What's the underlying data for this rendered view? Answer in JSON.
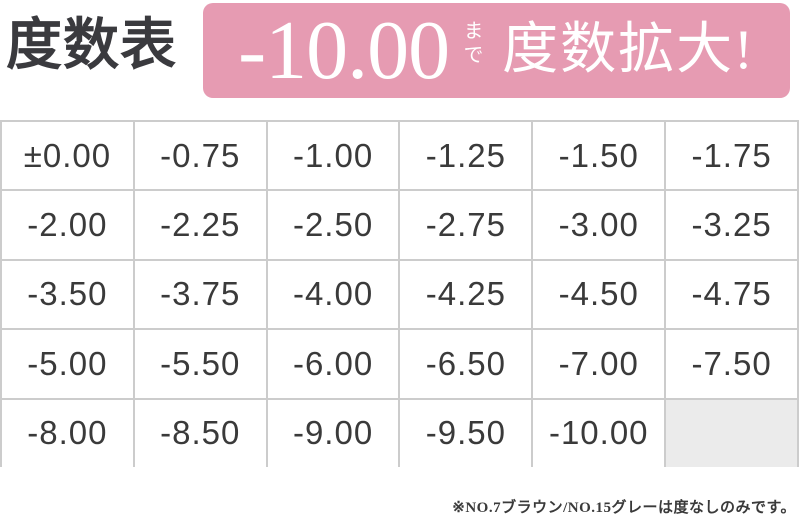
{
  "header": {
    "title": "度数表",
    "banner": {
      "power_value": "-10.00",
      "made_label": "まで",
      "message": "度数拡大!"
    }
  },
  "chart_data": {
    "type": "table",
    "title": "度数表",
    "columns": 6,
    "rows": [
      [
        "±0.00",
        "-0.75",
        "-1.00",
        "-1.25",
        "-1.50",
        "-1.75"
      ],
      [
        "-2.00",
        "-2.25",
        "-2.50",
        "-2.75",
        "-3.00",
        "-3.25"
      ],
      [
        "-3.50",
        "-3.75",
        "-4.00",
        "-4.25",
        "-4.50",
        "-4.75"
      ],
      [
        "-5.00",
        "-5.50",
        "-6.00",
        "-6.50",
        "-7.00",
        "-7.50"
      ],
      [
        "-8.00",
        "-8.50",
        "-9.00",
        "-9.50",
        "-10.00",
        ""
      ]
    ],
    "empty_cells": [
      [
        4,
        5
      ]
    ],
    "power_range_min": "-10.00",
    "power_range_max": "±0.00"
  },
  "footnote": "※NO.7ブラウン/NO.15グレーは度なしのみです。",
  "colors": {
    "banner_pink": "#e69bb2",
    "banner_text": "#ffffff",
    "text_dark": "#3a3a3a",
    "table_border_gray": "#cccccc",
    "empty_cell_gray": "#ebebeb",
    "background": "#ffffff"
  }
}
